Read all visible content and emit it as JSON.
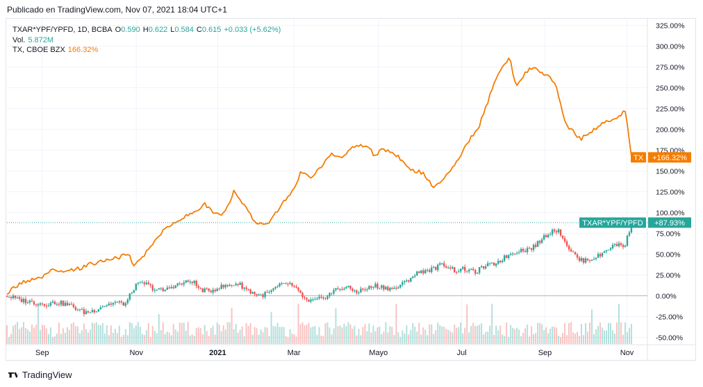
{
  "header": {
    "published": "Publicado en TradingView.com, Nov 07, 2021 18:04 UTC+1"
  },
  "legend": {
    "main_symbol": "TXAR*YPF/YPFD, 1D, BCBA",
    "o_label": "O",
    "o_value": "0.590",
    "h_label": "H",
    "h_value": "0.622",
    "l_label": "L",
    "l_value": "0.584",
    "c_label": "C",
    "c_value": "0.615",
    "change": "+0.033 (+5.62%)",
    "vol_label": "Vol.",
    "vol_value": "5.872M",
    "compare_symbol": "TX, CBOE BZX",
    "compare_value": "166.32%"
  },
  "footer": {
    "brand": "TradingView"
  },
  "colors": {
    "up": "#26a69a",
    "down": "#ef5350",
    "compare": "#f57c00",
    "grid": "#f0f3fa"
  },
  "chart_data": {
    "type": "line",
    "y_unit": "%",
    "y_ticks": [
      "325.00%",
      "300.00%",
      "275.00%",
      "250.00%",
      "225.00%",
      "200.00%",
      "175.00%",
      "150.00%",
      "125.00%",
      "100.00%",
      "75.00%",
      "50.00%",
      "25.00%",
      "0.00%",
      "-25.00%",
      "-50.00%"
    ],
    "y_tick_values": [
      325,
      300,
      275,
      250,
      225,
      200,
      175,
      150,
      125,
      100,
      75,
      50,
      25,
      0,
      -25,
      -50
    ],
    "ylim": [
      -58,
      333
    ],
    "x_ticks": [
      {
        "label": "Sep",
        "bold": false,
        "t": 0.055
      },
      {
        "label": "Nov",
        "bold": false,
        "t": 0.202
      },
      {
        "label": "2021",
        "bold": true,
        "t": 0.329
      },
      {
        "label": "Mar",
        "bold": false,
        "t": 0.448
      },
      {
        "label": "Mayo",
        "bold": false,
        "t": 0.58
      },
      {
        "label": "Jul",
        "bold": false,
        "t": 0.71
      },
      {
        "label": "Sep",
        "bold": false,
        "t": 0.84
      },
      {
        "label": "Nov",
        "bold": false,
        "t": 0.968
      }
    ],
    "series": [
      {
        "name": "TX",
        "kind": "line",
        "color": "#f57c00",
        "last_label": "TX",
        "last_value_label": "+166.32%",
        "last_value": 166.32,
        "points": [
          [
            0,
            0
          ],
          [
            0.01,
            10
          ],
          [
            0.03,
            18
          ],
          [
            0.05,
            20
          ],
          [
            0.07,
            30
          ],
          [
            0.09,
            28
          ],
          [
            0.11,
            32
          ],
          [
            0.13,
            38
          ],
          [
            0.15,
            42
          ],
          [
            0.17,
            45
          ],
          [
            0.19,
            50
          ],
          [
            0.197,
            35
          ],
          [
            0.21,
            45
          ],
          [
            0.225,
            60
          ],
          [
            0.24,
            75
          ],
          [
            0.255,
            85
          ],
          [
            0.27,
            92
          ],
          [
            0.29,
            100
          ],
          [
            0.31,
            110
          ],
          [
            0.32,
            100
          ],
          [
            0.335,
            98
          ],
          [
            0.35,
            115
          ],
          [
            0.355,
            128
          ],
          [
            0.37,
            108
          ],
          [
            0.385,
            92
          ],
          [
            0.395,
            85
          ],
          [
            0.41,
            90
          ],
          [
            0.43,
            110
          ],
          [
            0.445,
            125
          ],
          [
            0.46,
            150
          ],
          [
            0.475,
            140
          ],
          [
            0.49,
            155
          ],
          [
            0.505,
            170
          ],
          [
            0.52,
            165
          ],
          [
            0.54,
            178
          ],
          [
            0.56,
            182
          ],
          [
            0.575,
            168
          ],
          [
            0.585,
            175
          ],
          [
            0.6,
            172
          ],
          [
            0.615,
            165
          ],
          [
            0.625,
            155
          ],
          [
            0.635,
            150
          ],
          [
            0.65,
            148
          ],
          [
            0.665,
            130
          ],
          [
            0.675,
            135
          ],
          [
            0.69,
            150
          ],
          [
            0.705,
            165
          ],
          [
            0.72,
            185
          ],
          [
            0.735,
            200
          ],
          [
            0.75,
            230
          ],
          [
            0.76,
            255
          ],
          [
            0.77,
            270
          ],
          [
            0.785,
            288
          ],
          [
            0.795,
            250
          ],
          [
            0.81,
            270
          ],
          [
            0.825,
            275
          ],
          [
            0.84,
            265
          ],
          [
            0.855,
            258
          ],
          [
            0.86,
            245
          ],
          [
            0.87,
            210
          ],
          [
            0.88,
            200
          ],
          [
            0.895,
            188
          ],
          [
            0.91,
            195
          ],
          [
            0.925,
            205
          ],
          [
            0.94,
            210
          ],
          [
            0.955,
            215
          ],
          [
            0.965,
            225
          ],
          [
            0.975,
            170
          ]
        ]
      },
      {
        "name": "TXAR*YPF/YPFD",
        "kind": "candles",
        "color": "#26a69a",
        "last_label": "TXAR*YPF/YPFD",
        "last_value_label": "+87.93%",
        "last_value": 87.93,
        "points": [
          [
            0,
            0
          ],
          [
            0.02,
            -5
          ],
          [
            0.04,
            -8
          ],
          [
            0.06,
            -10
          ],
          [
            0.08,
            -8
          ],
          [
            0.1,
            -12
          ],
          [
            0.12,
            -20
          ],
          [
            0.135,
            -18
          ],
          [
            0.15,
            -12
          ],
          [
            0.17,
            -8
          ],
          [
            0.185,
            -10
          ],
          [
            0.2,
            12
          ],
          [
            0.215,
            15
          ],
          [
            0.23,
            8
          ],
          [
            0.245,
            6
          ],
          [
            0.26,
            12
          ],
          [
            0.275,
            15
          ],
          [
            0.29,
            18
          ],
          [
            0.3,
            8
          ],
          [
            0.315,
            5
          ],
          [
            0.33,
            10
          ],
          [
            0.345,
            12
          ],
          [
            0.36,
            15
          ],
          [
            0.37,
            10
          ],
          [
            0.38,
            5
          ],
          [
            0.395,
            0
          ],
          [
            0.41,
            4
          ],
          [
            0.425,
            12
          ],
          [
            0.44,
            15
          ],
          [
            0.455,
            5
          ],
          [
            0.47,
            -8
          ],
          [
            0.485,
            -5
          ],
          [
            0.5,
            0
          ],
          [
            0.515,
            8
          ],
          [
            0.53,
            10
          ],
          [
            0.545,
            5
          ],
          [
            0.56,
            8
          ],
          [
            0.575,
            12
          ],
          [
            0.59,
            10
          ],
          [
            0.605,
            8
          ],
          [
            0.62,
            15
          ],
          [
            0.635,
            25
          ],
          [
            0.65,
            30
          ],
          [
            0.665,
            32
          ],
          [
            0.68,
            38
          ],
          [
            0.69,
            35
          ],
          [
            0.7,
            30
          ],
          [
            0.715,
            32
          ],
          [
            0.73,
            28
          ],
          [
            0.745,
            35
          ],
          [
            0.76,
            38
          ],
          [
            0.775,
            45
          ],
          [
            0.79,
            52
          ],
          [
            0.8,
            55
          ],
          [
            0.81,
            55
          ],
          [
            0.825,
            60
          ],
          [
            0.84,
            72
          ],
          [
            0.855,
            80
          ],
          [
            0.865,
            75
          ],
          [
            0.875,
            60
          ],
          [
            0.885,
            50
          ],
          [
            0.895,
            42
          ],
          [
            0.91,
            44
          ],
          [
            0.925,
            48
          ],
          [
            0.94,
            58
          ],
          [
            0.955,
            62
          ],
          [
            0.965,
            60
          ],
          [
            0.975,
            88
          ]
        ]
      }
    ]
  }
}
